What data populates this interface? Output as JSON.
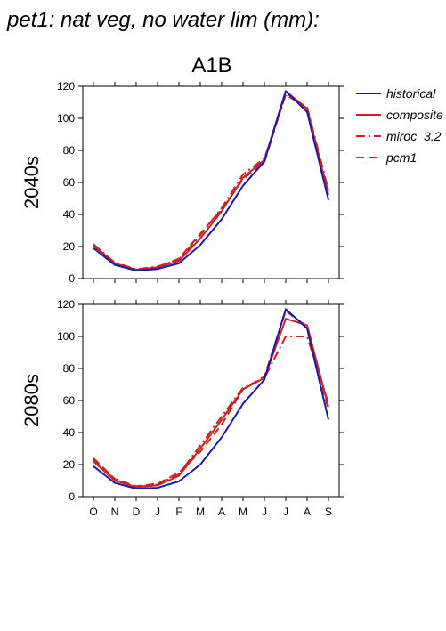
{
  "page": {
    "title": "pet1: nat veg, no water lim (mm):"
  },
  "chart_data": {
    "type": "line",
    "scenario": "A1B",
    "categories": [
      "O",
      "N",
      "D",
      "J",
      "F",
      "M",
      "A",
      "M",
      "J",
      "J",
      "A",
      "S"
    ],
    "ylim": [
      0,
      120
    ],
    "yticks": [
      0,
      20,
      40,
      60,
      80,
      100,
      120
    ],
    "grid": false,
    "legend_position": "right",
    "legend": [
      {
        "name": "historical",
        "color": "#1a1aaa",
        "dash": "solid"
      },
      {
        "name": "composite",
        "color": "#cc2222",
        "dash": "solid"
      },
      {
        "name": "miroc_3.2",
        "color": "#cc2222",
        "dash": "dashdot"
      },
      {
        "name": "pcm1",
        "color": "#cc2222",
        "dash": "dashed"
      }
    ],
    "panels": [
      {
        "label": "2040s",
        "series": [
          {
            "name": "historical",
            "values": [
              19,
              8.5,
              5,
              6,
              9.5,
              21,
              37,
              58,
              73,
              117,
              104,
              49
            ]
          },
          {
            "name": "composite",
            "values": [
              21,
              9.5,
              5.5,
              7,
              11,
              25,
              42,
              63,
              74,
              117,
              106,
              52
            ]
          },
          {
            "name": "miroc_3.2",
            "values": [
              21.5,
              10,
              5.8,
              7.5,
              12,
              27,
              44,
              65,
              75,
              115,
              107,
              55
            ]
          },
          {
            "name": "pcm1",
            "values": [
              20.5,
              9.5,
              5.5,
              7,
              12.5,
              28,
              43,
              62,
              73,
              115,
              106,
              53
            ]
          }
        ]
      },
      {
        "label": "2080s",
        "series": [
          {
            "name": "historical",
            "values": [
              19,
              8.5,
              5,
              5.5,
              9.5,
              20,
              37,
              58,
              73,
              117,
              105,
              48
            ]
          },
          {
            "name": "composite",
            "values": [
              22,
              10,
              6,
              7,
              13,
              30,
              48,
              67,
              74,
              111,
              107,
              56
            ]
          },
          {
            "name": "miroc_3.2",
            "values": [
              23,
              10.5,
              6,
              7.5,
              14,
              32,
              50,
              68,
              74,
              100,
              100,
              58
            ]
          },
          {
            "name": "pcm1",
            "values": [
              24,
              11,
              6.5,
              8,
              15,
              28,
              45,
              67,
              75,
              116,
              106,
              54
            ]
          }
        ]
      }
    ]
  }
}
